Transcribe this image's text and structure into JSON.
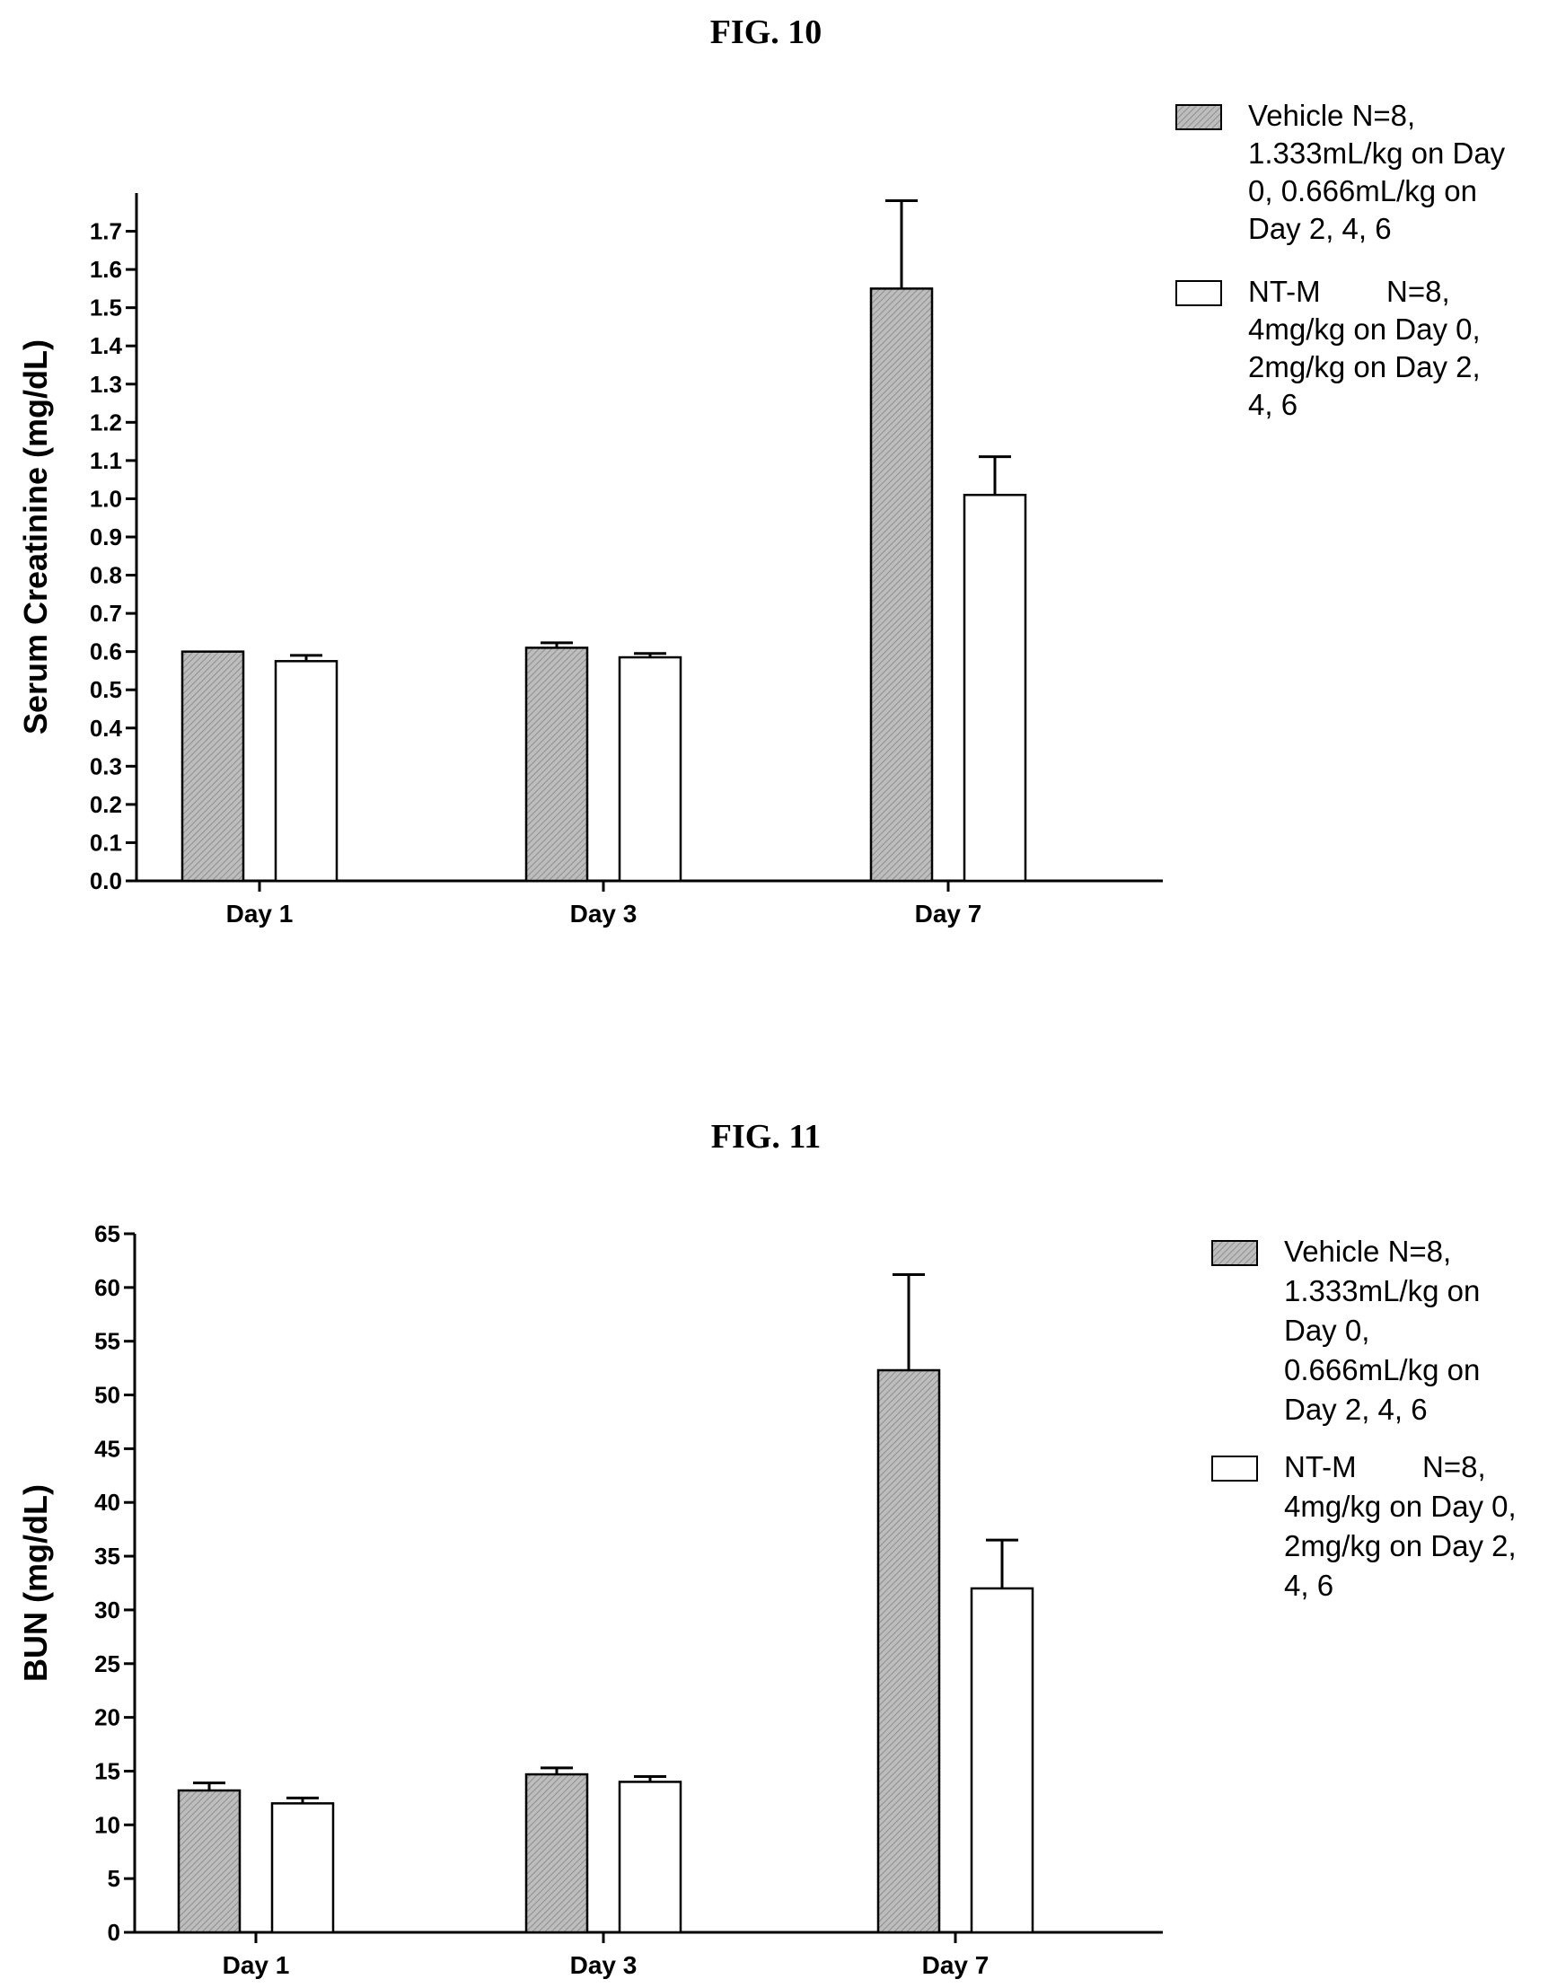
{
  "chart_data": [
    {
      "type": "bar",
      "title": "FIG. 10",
      "ylabel": "Serum Creatinine (mg/dL)",
      "xlabel": "",
      "categories": [
        "Day 1",
        "Day 3",
        "Day 7"
      ],
      "ylim": [
        0,
        1.8
      ],
      "yticks": [
        "0.0",
        "0.1",
        "0.2",
        "0.3",
        "0.4",
        "0.5",
        "0.6",
        "0.7",
        "0.8",
        "0.9",
        "1.0",
        "1.1",
        "1.2",
        "1.3",
        "1.4",
        "1.5",
        "1.6",
        "1.7"
      ],
      "legend_position": "top-right",
      "series": [
        {
          "name": "Vehicle N=8, 1.333mL/kg on Day 0, 0.666mL/kg on Day 2, 4, 6",
          "legend_lines": [
            "Vehicle N=8,",
            "1.333mL/kg on Day",
            "0, 0.666mL/kg on",
            "Day 2, 4, 6"
          ],
          "fill": "gray-hatched",
          "values": [
            0.6,
            0.61,
            1.55
          ],
          "errors": [
            0.0,
            0.013,
            0.23
          ]
        },
        {
          "name": "NT-M N=8, 4mg/kg on Day 0, 2mg/kg on Day 2, 4, 6",
          "legend_lines": [
            "NT-M        N=8,",
            "4mg/kg on Day 0,",
            "2mg/kg on Day 2,",
            "4, 6"
          ],
          "fill": "white",
          "values": [
            0.575,
            0.585,
            1.01
          ],
          "errors": [
            0.015,
            0.01,
            0.1
          ]
        }
      ]
    },
    {
      "type": "bar",
      "title": "FIG. 11",
      "ylabel": "BUN (mg/dL)",
      "xlabel": "",
      "categories": [
        "Day 1",
        "Day 3",
        "Day 7"
      ],
      "ylim": [
        0,
        65
      ],
      "yticks": [
        "0",
        "5",
        "10",
        "15",
        "20",
        "25",
        "30",
        "35",
        "40",
        "45",
        "50",
        "55",
        "60",
        "65"
      ],
      "legend_position": "top-right",
      "series": [
        {
          "name": "Vehicle N=8, 1.333mL/kg on Day 0, 0.666mL/kg on Day 2, 4, 6",
          "legend_lines": [
            "Vehicle N=8,",
            "1.333mL/kg on",
            "Day 0,",
            "0.666mL/kg on",
            "Day 2, 4, 6"
          ],
          "fill": "gray-hatched",
          "values": [
            13.2,
            14.7,
            52.3
          ],
          "errors": [
            0.7,
            0.6,
            8.9
          ]
        },
        {
          "name": "NT-M N=8, 4mg/kg on Day 0, 2mg/kg on Day 2, 4, 6",
          "legend_lines": [
            "NT-M        N=8,",
            "4mg/kg on Day 0,",
            "2mg/kg on Day 2,",
            "4, 6"
          ],
          "fill": "white",
          "values": [
            12.0,
            14.0,
            32.0
          ],
          "errors": [
            0.5,
            0.5,
            4.5
          ]
        }
      ]
    }
  ]
}
